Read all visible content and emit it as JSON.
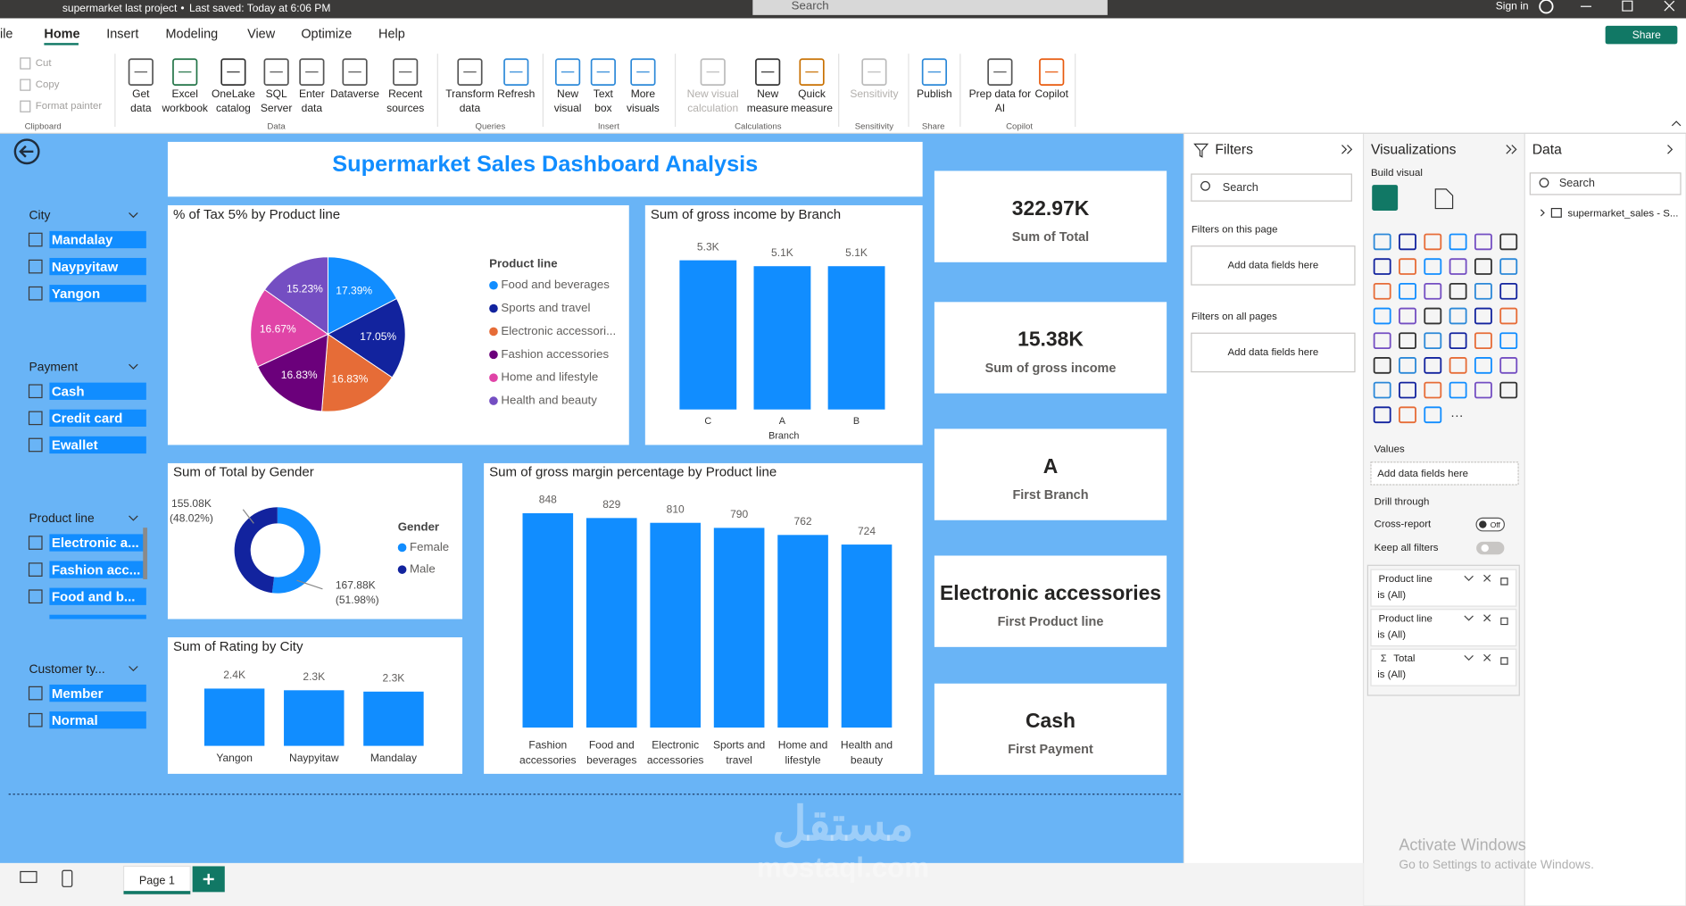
{
  "title_bar": {
    "file": "supermarket last project",
    "saved": "Last saved: Today at 6:06 PM",
    "search": "Search",
    "sign_in": "Sign in"
  },
  "tabs": [
    "ile",
    "Home",
    "Insert",
    "Modeling",
    "View",
    "Optimize",
    "Help"
  ],
  "share": "Share",
  "clipboard": [
    "Cut",
    "Copy",
    "Format painter"
  ],
  "groups": [
    {
      "name": "Clipboard",
      "buttons": []
    },
    {
      "name": "Data",
      "buttons": [
        [
          "Get",
          "data"
        ],
        [
          "Excel",
          "workbook"
        ],
        [
          "OneLake",
          "catalog"
        ],
        [
          "SQL",
          "Server"
        ],
        [
          "Enter",
          "data"
        ],
        [
          "Dataverse"
        ],
        [
          "Recent",
          "sources"
        ]
      ]
    },
    {
      "name": "Queries",
      "buttons": [
        [
          "Transform",
          "data"
        ],
        [
          "Refresh"
        ]
      ]
    },
    {
      "name": "Insert",
      "buttons": [
        [
          "New",
          "visual"
        ],
        [
          "Text",
          "box"
        ],
        [
          "More",
          "visuals"
        ]
      ]
    },
    {
      "name": "Calculations",
      "buttons": [
        [
          "New visual",
          "calculation"
        ],
        [
          "New",
          "measure"
        ],
        [
          "Quick",
          "measure"
        ]
      ]
    },
    {
      "name": "Sensitivity",
      "buttons": [
        [
          "Sensitivity"
        ]
      ]
    },
    {
      "name": "Share",
      "buttons": [
        [
          "Publish"
        ]
      ]
    },
    {
      "name": "Copilot",
      "buttons": [
        [
          "Prep data for",
          "AI"
        ],
        [
          "Copilot"
        ]
      ]
    }
  ],
  "slicers": [
    {
      "title": "City",
      "items": [
        "Mandalay",
        "Naypyitaw",
        "Yangon"
      ]
    },
    {
      "title": "Payment",
      "items": [
        "Cash",
        "Credit card",
        "Ewallet"
      ]
    },
    {
      "title": "Product line",
      "items": [
        "Electronic a...",
        "Fashion acc...",
        "Food and b..."
      ]
    },
    {
      "title": "Customer ty...",
      "items": [
        "Member",
        "Normal"
      ]
    }
  ],
  "report_title": "Supermarket Sales Dashboard Analysis",
  "chart_data": [
    {
      "type": "pie",
      "title": "% of Tax 5% by Product line",
      "legend_title": "Product line",
      "categories": [
        "Food and beverages",
        "Sports and travel",
        "Electronic accessori...",
        "Fashion accessories",
        "Home and lifestyle",
        "Health and beauty"
      ],
      "values": [
        17.39,
        17.05,
        16.83,
        16.83,
        16.67,
        15.23
      ],
      "value_labels": [
        "17.39%",
        "17.05%",
        "16.83%",
        "16.83%",
        "16.67%",
        "15.23%"
      ],
      "colors": [
        "#118DFF",
        "#12239E",
        "#E66C37",
        "#6B007B",
        "#E044A7",
        "#744EC2"
      ],
      "legend": "right"
    },
    {
      "type": "bar",
      "title": "Sum of gross income by Branch",
      "xlabel": "Branch",
      "categories": [
        "C",
        "A",
        "B"
      ],
      "values": [
        5265,
        5057,
        5057
      ],
      "value_labels": [
        "5.3K",
        "5.1K",
        "5.1K"
      ],
      "ylim": [
        0,
        5500
      ],
      "color": "#118DFF",
      "grid": false
    },
    {
      "type": "donut",
      "title": "Sum of Total by Gender",
      "legend_title": "Gender",
      "categories": [
        "Female",
        "Male"
      ],
      "values": [
        167880,
        155080
      ],
      "value_labels": [
        "167.88K",
        "155.08K"
      ],
      "percent_labels": [
        "(51.98%)",
        "(48.02%)"
      ],
      "colors": [
        "#118DFF",
        "#12239E"
      ],
      "legend": "right"
    },
    {
      "type": "bar",
      "title": "Sum of Rating by City",
      "categories": [
        "Yangon",
        "Naypyitaw",
        "Mandalay"
      ],
      "values": [
        2389,
        2319,
        2263
      ],
      "value_labels": [
        "2.4K",
        "2.3K",
        "2.3K"
      ],
      "ylim": [
        0,
        2600
      ],
      "color": "#118DFF",
      "grid": false
    },
    {
      "type": "bar",
      "title": "Sum of gross margin percentage by Product line",
      "categories": [
        "Fashion accessories",
        "Food and beverages",
        "Electronic accessories",
        "Sports and travel",
        "Home and lifestyle",
        "Health and beauty"
      ],
      "values": [
        848,
        829,
        810,
        790,
        762,
        724
      ],
      "ylim": [
        0,
        880
      ],
      "color": "#118DFF",
      "grid": false
    }
  ],
  "cards": [
    {
      "value": "322.97K",
      "label": "Sum of Total"
    },
    {
      "value": "15.38K",
      "label": "Sum of gross income"
    },
    {
      "value": "A",
      "label": "First Branch"
    },
    {
      "value": "Electronic accessories",
      "label": "First Product line"
    },
    {
      "value": "Cash",
      "label": "First Payment"
    }
  ],
  "filters": {
    "title": "Filters",
    "search": "Search",
    "on_page": "Filters on this page",
    "add_page": "Add data fields here",
    "on_all": "Filters on all pages",
    "add_all": "Add data fields here"
  },
  "visualizations": {
    "title": "Visualizations",
    "build": "Build visual",
    "values": "Values",
    "add_values": "Add data fields here",
    "drill": "Drill through",
    "cross_report": "Cross-report",
    "off": "Off",
    "keep_filters": "Keep all filters",
    "filter_cards": [
      {
        "field": "Product line",
        "state": "is (All)"
      },
      {
        "field": "Product line",
        "state": "is (All)"
      },
      {
        "field": "Total",
        "state": "is (All)"
      }
    ]
  },
  "data_pane": {
    "title": "Data",
    "search": "Search",
    "table": "supermarket_sales - S..."
  },
  "page_tab": "Page 1",
  "watermark": {
    "activate": "Activate Windows",
    "settings": "Go to Settings to activate Windows.",
    "brand_ar": "مستقل",
    "brand": "mostaql.com"
  }
}
